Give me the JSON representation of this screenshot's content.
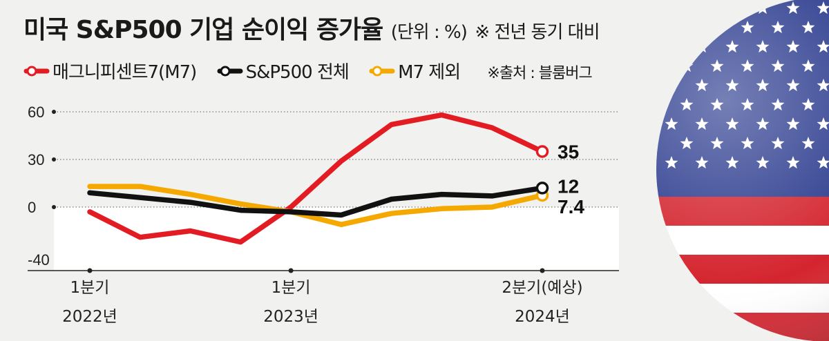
{
  "title": {
    "main": "미국 S&P500 기업 순이익 증가율",
    "unit": "(단위 : %)",
    "note": "※ 전년 동기 대비"
  },
  "legend": [
    {
      "label": "매그니피센트7(M7)",
      "color": "#e31b23"
    },
    {
      "label": "S&P500 전체",
      "color": "#111111"
    },
    {
      "label": "M7 제외",
      "color": "#f5a800"
    }
  ],
  "source": "※출처 : 블룸버그",
  "colors": {
    "m7": "#e31b23",
    "sp500": "#111111",
    "ex_m7": "#f5a800",
    "negative_bg": "#ffffff"
  },
  "chart_data": {
    "type": "line",
    "title": "미국 S&P500 기업 순이익 증가율",
    "unit": "%",
    "ylim": [
      -40,
      60
    ],
    "yticks": [
      {
        "value": 60,
        "label": "60"
      },
      {
        "value": 30,
        "label": "30"
      },
      {
        "value": 0,
        "label": "0"
      },
      {
        "value": -40,
        "label": "-40"
      }
    ],
    "x": [
      0,
      1,
      2,
      3,
      4,
      5,
      6,
      7,
      8,
      9
    ],
    "xticks": [
      {
        "index": 0,
        "label1": "1분기",
        "label2": "2022년"
      },
      {
        "index": 4,
        "label1": "1분기",
        "label2": "2023년"
      },
      {
        "index": 9,
        "label1": "2분기(예상)",
        "label2": "2024년"
      }
    ],
    "series": [
      {
        "name": "매그니피센트7(M7)",
        "key": "m7",
        "values": [
          -3,
          -19,
          -15,
          -22,
          0,
          29,
          52,
          58,
          50,
          35
        ],
        "end_label": "35"
      },
      {
        "name": "S&P500 전체",
        "key": "sp500",
        "values": [
          9,
          6,
          3,
          -2,
          -3,
          -5,
          5,
          8,
          7,
          12
        ],
        "end_label": "12"
      },
      {
        "name": "M7 제외",
        "key": "ex_m7",
        "values": [
          13,
          13,
          8,
          2,
          -3,
          -11,
          -4,
          -1,
          0,
          7.4
        ],
        "end_label": "7.4"
      }
    ]
  }
}
